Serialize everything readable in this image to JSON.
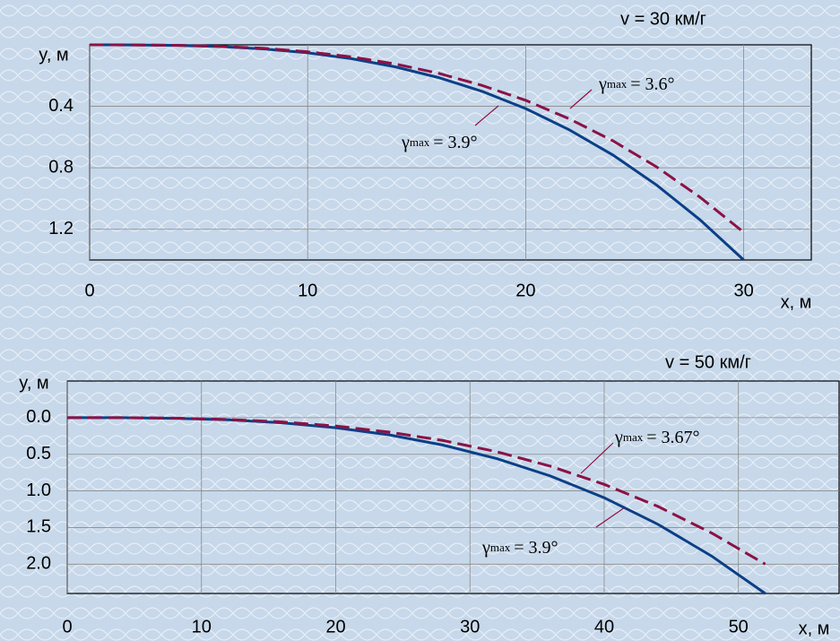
{
  "chart_data": [
    {
      "type": "line",
      "title": "v = 30 км/г",
      "y_label": "y, м",
      "x_label": "x, м",
      "x": [
        0,
        2,
        4,
        6,
        8,
        10,
        12,
        14,
        16,
        18,
        20,
        22,
        24,
        26,
        28,
        30
      ],
      "xlim": [
        0,
        33.1
      ],
      "xticks": [
        0,
        10,
        20,
        30
      ],
      "ylim": [
        1.4,
        0
      ],
      "yticks": [
        0.4,
        0.8,
        1.2
      ],
      "grid": true,
      "series": [
        {
          "color": "#0b3f86",
          "dashed": false,
          "values": [
            0,
            0.0004,
            0.0033,
            0.011,
            0.027,
            0.052,
            0.09,
            0.143,
            0.213,
            0.303,
            0.415,
            0.553,
            0.717,
            0.912,
            1.139,
            1.4
          ]
        },
        {
          "color": "#8b1245",
          "dashed": true,
          "values": [
            0,
            0.0004,
            0.0029,
            0.01,
            0.023,
            0.045,
            0.078,
            0.124,
            0.185,
            0.264,
            0.361,
            0.481,
            0.625,
            0.794,
            0.992,
            1.22
          ]
        }
      ],
      "annotations": [
        {
          "symbol": "γ",
          "sub": "max",
          "text": "= 3.6°"
        },
        {
          "symbol": "γ",
          "sub": "max",
          "text": "= 3.9°"
        }
      ]
    },
    {
      "type": "line",
      "title": "v = 50 км/г",
      "y_label": "y, м",
      "x_label": "x, м",
      "x": [
        0,
        4,
        8,
        12,
        16,
        20,
        24,
        28,
        32,
        36,
        40,
        44,
        48,
        52
      ],
      "xlim": [
        0,
        57.5
      ],
      "xticks": [
        0,
        10,
        20,
        30,
        40,
        50
      ],
      "ylim": [
        2.4,
        -0.5
      ],
      "yticks": [
        {
          "value": 0,
          "label": "0.0"
        },
        0.5,
        {
          "value": 1,
          "label": "1.0"
        },
        1.5,
        {
          "value": 2,
          "label": "2.0"
        }
      ],
      "grid": true,
      "series": [
        {
          "color": "#0b3f86",
          "dashed": false,
          "values": [
            0,
            0.001,
            0.009,
            0.029,
            0.07,
            0.137,
            0.236,
            0.375,
            0.56,
            0.797,
            1.093,
            1.455,
            1.889,
            2.4
          ]
        },
        {
          "color": "#8b1245",
          "dashed": true,
          "values": [
            0,
            0.001,
            0.007,
            0.025,
            0.058,
            0.114,
            0.197,
            0.312,
            0.466,
            0.664,
            0.911,
            1.212,
            1.574,
            2.0
          ]
        }
      ],
      "annotations": [
        {
          "symbol": "γ",
          "sub": "max",
          "text": "= 3.67°"
        },
        {
          "symbol": "γ",
          "sub": "max",
          "text": "= 3.9°"
        }
      ]
    }
  ]
}
